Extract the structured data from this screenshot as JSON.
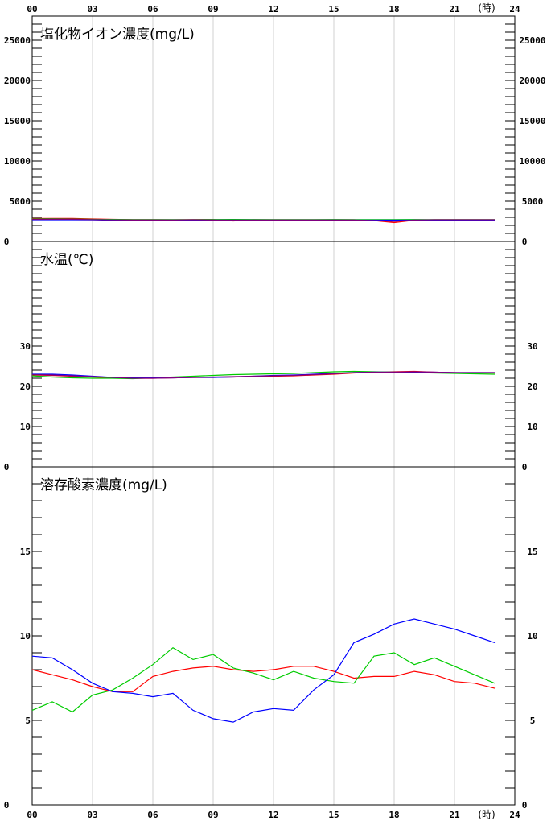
{
  "x_axis": {
    "hour_ticks": [
      "00",
      "03",
      "06",
      "09",
      "12",
      "15",
      "18",
      "21",
      "24"
    ],
    "unit": "(時)"
  },
  "chart_data": [
    {
      "type": "line",
      "title": "塩化物イオン濃度(mg/L)",
      "ylim": [
        0,
        28000
      ],
      "yticks": [
        0,
        5000,
        10000,
        15000,
        20000,
        25000
      ],
      "ytick_labels": [
        "0",
        "5000",
        "10000",
        "15000",
        "20000",
        "25000"
      ],
      "x": [
        0,
        1,
        2,
        3,
        4,
        5,
        6,
        7,
        8,
        9,
        10,
        11,
        12,
        13,
        14,
        15,
        16,
        17,
        18,
        19,
        20,
        21,
        22,
        23
      ],
      "series": [
        {
          "color": "#ff0000",
          "values": [
            2850,
            2870,
            2860,
            2800,
            2750,
            2720,
            2710,
            2700,
            2720,
            2730,
            2550,
            2700,
            2700,
            2700,
            2700,
            2700,
            2700,
            2600,
            2350,
            2650,
            2700,
            2700,
            2700,
            2700
          ]
        },
        {
          "color": "#00cc00",
          "values": [
            2800,
            2810,
            2790,
            2750,
            2740,
            2720,
            2710,
            2720,
            2720,
            2730,
            2740,
            2730,
            2720,
            2720,
            2720,
            2730,
            2720,
            2720,
            2720,
            2730,
            2720,
            2720,
            2720,
            2720
          ]
        },
        {
          "color": "#0000ff",
          "values": [
            2700,
            2700,
            2700,
            2680,
            2650,
            2650,
            2650,
            2650,
            2650,
            2650,
            2650,
            2650,
            2650,
            2650,
            2650,
            2650,
            2650,
            2650,
            2650,
            2650,
            2650,
            2650,
            2650,
            2650
          ]
        },
        {
          "color": "#800080",
          "values": [
            2750,
            2760,
            2760,
            2720,
            2680,
            2660,
            2660,
            2660,
            2700,
            2660,
            2650,
            2660,
            2660,
            2660,
            2660,
            2660,
            2660,
            2600,
            2500,
            2660,
            2700,
            2700,
            2700,
            2700
          ]
        }
      ]
    },
    {
      "type": "line",
      "title": "水温(℃)",
      "ylim": [
        0,
        56
      ],
      "yticks": [
        0,
        10,
        20,
        30
      ],
      "ytick_labels": [
        "0",
        "10",
        "20",
        "30"
      ],
      "x": [
        0,
        1,
        2,
        3,
        4,
        5,
        6,
        7,
        8,
        9,
        10,
        11,
        12,
        13,
        14,
        15,
        16,
        17,
        18,
        19,
        20,
        21,
        22,
        23
      ],
      "series": [
        {
          "color": "#ff0000",
          "values": [
            22.8,
            22.7,
            22.5,
            22.3,
            22.1,
            22.0,
            22.0,
            22.1,
            22.2,
            22.2,
            22.3,
            22.4,
            22.5,
            22.6,
            22.8,
            23.0,
            23.3,
            23.5,
            23.6,
            23.7,
            23.5,
            23.4,
            23.3,
            23.3
          ]
        },
        {
          "color": "#00cc00",
          "values": [
            22.6,
            22.3,
            22.1,
            22.0,
            22.0,
            21.9,
            22.1,
            22.3,
            22.5,
            22.7,
            22.9,
            23.0,
            23.1,
            23.2,
            23.4,
            23.6,
            23.7,
            23.6,
            23.5,
            23.4,
            23.3,
            23.2,
            23.1,
            23.0
          ]
        },
        {
          "color": "#0000ff",
          "values": [
            23.0,
            23.0,
            22.8,
            22.5,
            22.2,
            22.1,
            22.1,
            22.1,
            22.2,
            22.2,
            22.3,
            22.5,
            22.7,
            22.8,
            23.0,
            23.2,
            23.4,
            23.5,
            23.5,
            23.5,
            23.5,
            23.4,
            23.4,
            23.4
          ]
        },
        {
          "color": "#800080",
          "values": [
            22.9,
            22.8,
            22.6,
            22.4,
            22.2,
            22.0,
            22.0,
            22.1,
            22.2,
            22.3,
            22.4,
            22.5,
            22.6,
            22.7,
            22.9,
            23.1,
            23.4,
            23.5,
            23.5,
            23.6,
            23.5,
            23.4,
            23.4,
            23.4
          ]
        }
      ]
    },
    {
      "type": "line",
      "title": "溶存酸素濃度(mg/L)",
      "ylim": [
        0,
        20
      ],
      "yticks": [
        0,
        5,
        10,
        15
      ],
      "ytick_labels": [
        "0",
        "5",
        "10",
        "15"
      ],
      "x": [
        0,
        1,
        2,
        3,
        4,
        5,
        6,
        7,
        8,
        9,
        10,
        11,
        12,
        13,
        14,
        15,
        16,
        17,
        18,
        19,
        20,
        21,
        22,
        23
      ],
      "series": [
        {
          "color": "#ff0000",
          "values": [
            8.0,
            7.7,
            7.4,
            7.0,
            6.7,
            6.7,
            7.6,
            7.9,
            8.1,
            8.2,
            8.0,
            7.9,
            8.0,
            8.2,
            8.2,
            7.9,
            7.5,
            7.6,
            7.6,
            7.9,
            7.7,
            7.3,
            7.2,
            6.9
          ]
        },
        {
          "color": "#00cc00",
          "values": [
            5.6,
            6.1,
            5.5,
            6.5,
            6.8,
            7.5,
            8.3,
            9.3,
            8.6,
            8.9,
            8.1,
            7.8,
            7.4,
            7.9,
            7.5,
            7.3,
            7.2,
            8.8,
            9.0,
            8.3,
            8.7,
            8.2,
            7.7,
            7.2
          ]
        },
        {
          "color": "#0000ff",
          "values": [
            8.8,
            8.7,
            8.0,
            7.2,
            6.7,
            6.6,
            6.4,
            6.6,
            5.6,
            5.1,
            4.9,
            5.5,
            5.7,
            5.6,
            6.8,
            7.7,
            9.6,
            10.1,
            10.7,
            11.0,
            10.7,
            10.4,
            10.0,
            9.6
          ]
        }
      ]
    }
  ]
}
